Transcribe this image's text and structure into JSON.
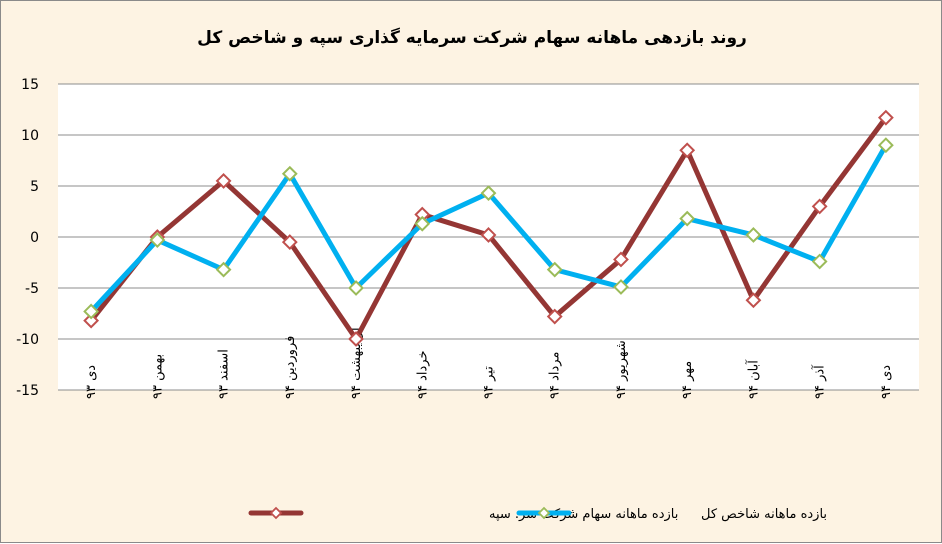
{
  "chart_data": {
    "type": "line",
    "title": "روند بازدهی ماهانه سهام شرکت سرمایه گذاری سپه و شاخص کل",
    "categories": [
      "دی ۹۳",
      "بهمن ۹۳",
      "اسفند ۹۳",
      "فروردین ۹۴",
      "اردیبهشت ۹۴",
      "خرداد ۹۴",
      "تیر ۹۴",
      "مرداد ۹۴",
      "شهریور ۹۴",
      "مهر ۹۴",
      "آبان ۹۴",
      "آذر ۹۴",
      "دی ۹۴"
    ],
    "ylim": [
      -15,
      15
    ],
    "yticks": [
      "15",
      "10",
      "5",
      "0",
      "-5",
      "-10",
      "-15"
    ],
    "ytick_values": [
      15,
      10,
      5,
      0,
      -5,
      -10,
      -15
    ],
    "grid": true,
    "legend_position": "bottom",
    "series": [
      {
        "name": "بازده ماهانه سهام شرکت سر. سپه",
        "color": "#943634",
        "marker_color": "#c0504d",
        "values": [
          -8.2,
          0,
          5.5,
          -0.5,
          -10,
          2.2,
          0.2,
          -7.8,
          -2.2,
          8.5,
          -6.2,
          3,
          11.7
        ]
      },
      {
        "name": "بازده ماهانه شاخص کل",
        "color": "#00b0f0",
        "marker_color": "#9bbb59",
        "values": [
          -7.3,
          -0.3,
          -3.2,
          6.2,
          -5,
          1.3,
          4.3,
          -3.2,
          -4.9,
          1.8,
          0.2,
          -2.4,
          9
        ]
      }
    ]
  }
}
